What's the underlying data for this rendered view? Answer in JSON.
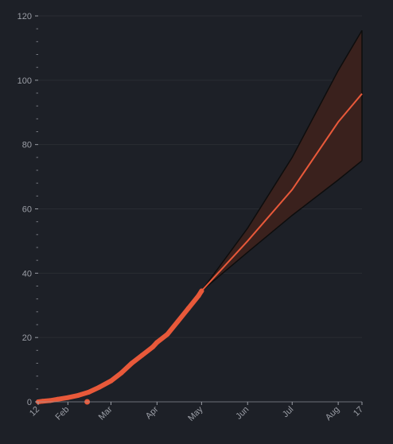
{
  "chart_data": {
    "type": "line",
    "title": "",
    "xlabel": "",
    "ylabel": "",
    "x_tick_labels": [
      "12",
      "Feb",
      "Mar",
      "Apr",
      "May",
      "Jun",
      "Jul",
      "Aug",
      "17"
    ],
    "y_tick_labels": [
      "0",
      "20",
      "40",
      "60",
      "80",
      "100",
      "120"
    ],
    "ylim": [
      0,
      120
    ],
    "grid": true,
    "legend": "none",
    "series": [
      {
        "role": "observed",
        "x": [
          "Jan 12",
          "Jan 15",
          "Jan 20",
          "Jan 25",
          "Feb 1",
          "Feb 8",
          "Feb 15",
          "Feb 22",
          "Mar 1",
          "Mar 8",
          "Mar 15",
          "Mar 22",
          "Mar 29",
          "Apr 1",
          "Apr 8",
          "Apr 15",
          "Apr 22",
          "Apr 29",
          "May 1"
        ],
        "y": [
          0,
          0.2,
          0.4,
          0.8,
          1.3,
          2.0,
          3.0,
          4.5,
          6.5,
          9.0,
          12.0,
          14.5,
          17.0,
          18.5,
          21.0,
          25.0,
          29.0,
          33.0,
          34.5
        ]
      },
      {
        "role": "forecast",
        "x": [
          "May 1",
          "Jun 1",
          "Jul 1",
          "Aug 1",
          "Aug 17"
        ],
        "y": [
          34.5,
          50.0,
          66.0,
          87.0,
          95.8
        ],
        "lower": [
          34.5,
          46.5,
          58.0,
          69.0,
          75.0
        ],
        "upper": [
          34.5,
          54.0,
          76.0,
          103.0,
          115.5
        ]
      }
    ],
    "outlier_points": [
      {
        "x": "Feb 14",
        "y": 0
      }
    ],
    "colors": {
      "background": "#1d2027",
      "grid": "#2a2d33",
      "axis_text": "#9b9ea6",
      "line": "#e8593a",
      "band_fill": "#3a211d",
      "band_edge": "#0d0d0d"
    }
  }
}
